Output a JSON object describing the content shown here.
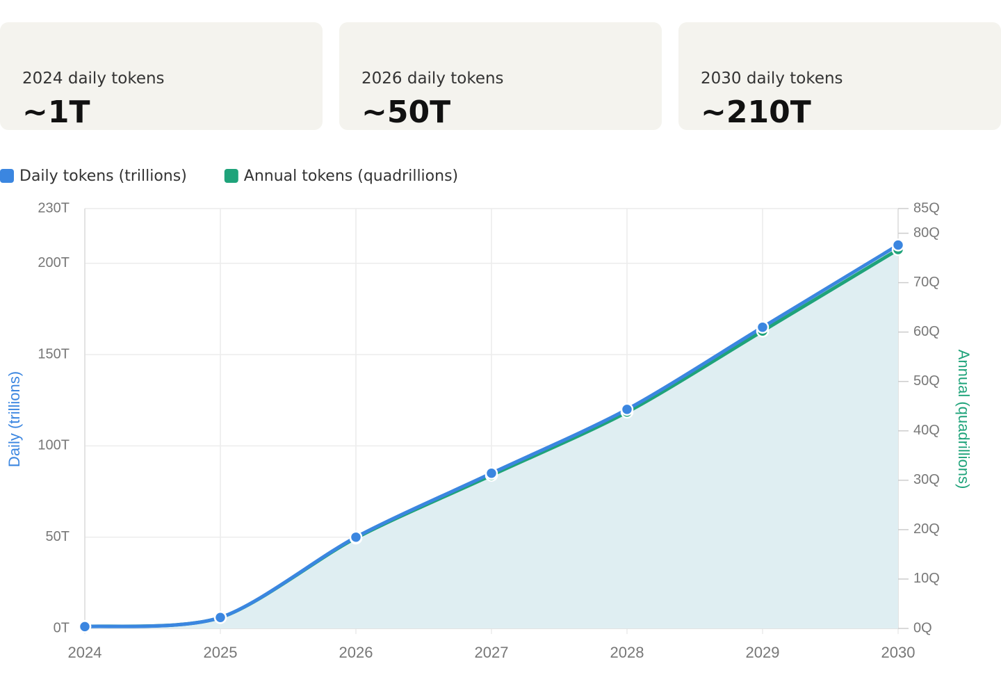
{
  "cards": [
    {
      "label": "2024 daily tokens",
      "value": "~1T"
    },
    {
      "label": "2026 daily tokens",
      "value": "~50T"
    },
    {
      "label": "2030 daily tokens",
      "value": "~210T"
    }
  ],
  "chart_data": {
    "type": "line",
    "categories": [
      "2024",
      "2025",
      "2026",
      "2027",
      "2028",
      "2029",
      "2030"
    ],
    "series": [
      {
        "name": "Daily tokens (trillions)",
        "color": "#3b86e0",
        "values": [
          1,
          6,
          50,
          85,
          120,
          165,
          210
        ]
      },
      {
        "name": "Annual tokens (quadrillions)",
        "color": "#1fa37a",
        "axis": "y2",
        "fill": "#dfeef2",
        "values": [
          0.4,
          2.2,
          18.3,
          31,
          43.8,
          60.2,
          76.7
        ]
      }
    ],
    "ylabel": "Daily (trillions)",
    "y2label": "Annual (quadrillions)",
    "ylim": [
      0,
      230
    ],
    "yticks": [
      {
        "value": 0,
        "label": "0T"
      },
      {
        "value": 50,
        "label": "50T"
      },
      {
        "value": 100,
        "label": "100T"
      },
      {
        "value": 150,
        "label": "150T"
      },
      {
        "value": 200,
        "label": "200T"
      },
      {
        "value": 230,
        "label": "230T"
      }
    ],
    "y2lim": [
      0,
      85
    ],
    "y2ticks": [
      {
        "value": 0,
        "label": "0Q"
      },
      {
        "value": 10,
        "label": "10Q"
      },
      {
        "value": 20,
        "label": "20Q"
      },
      {
        "value": 30,
        "label": "30Q"
      },
      {
        "value": 40,
        "label": "40Q"
      },
      {
        "value": 50,
        "label": "50Q"
      },
      {
        "value": 60,
        "label": "60Q"
      },
      {
        "value": 70,
        "label": "70Q"
      },
      {
        "value": 80,
        "label": "80Q"
      },
      {
        "value": 85,
        "label": "85Q"
      }
    ],
    "grid": true,
    "legend": "top-left"
  }
}
